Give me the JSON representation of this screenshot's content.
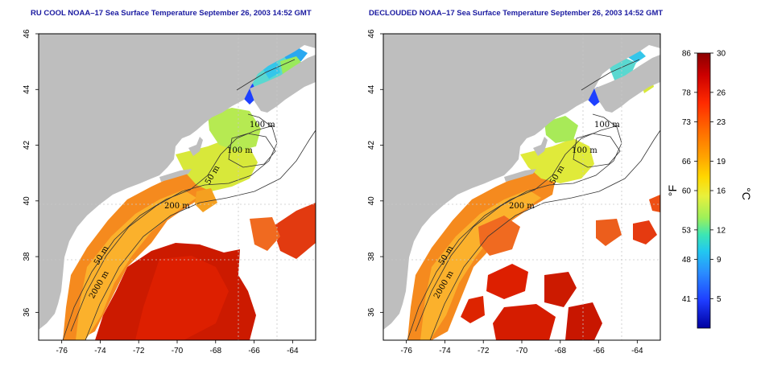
{
  "panels": [
    {
      "id": "raw",
      "title": "RU COOL NOAA–17 Sea Surface Temperature September 26, 2003 14:52 GMT"
    },
    {
      "id": "declouded",
      "title": "DECLOUDED NOAA–17 Sea Surface Temperature September 26, 2003 14:52 GMT"
    }
  ],
  "axes": {
    "x_ticks": [
      "-76",
      "-74",
      "-72",
      "-70",
      "-68",
      "-66",
      "-64"
    ],
    "y_ticks": [
      "36",
      "38",
      "40",
      "42",
      "44",
      "46"
    ],
    "lon_range": [
      -77.2,
      -62.8
    ],
    "lat_range": [
      35.0,
      46.0
    ]
  },
  "contour_labels": [
    "100 m",
    "100 m",
    "50 m",
    "200 m",
    "50 m",
    "2000 m"
  ],
  "colorbar": {
    "fahrenheit_ticks": [
      "86",
      "78",
      "73",
      "66",
      "60",
      "53",
      "48",
      "41"
    ],
    "celsius_ticks": [
      "30",
      "26",
      "23",
      "19",
      "16",
      "12",
      "9",
      "5"
    ],
    "left_unit": "°F",
    "right_unit": "°C",
    "colors": [
      "#8b0000",
      "#cc0000",
      "#ff2a00",
      "#ff6a00",
      "#ffa500",
      "#ffd700",
      "#e8f03c",
      "#9cf05a",
      "#3ce6b4",
      "#22c8f0",
      "#2a8cff",
      "#1e3cff",
      "#0000a0"
    ]
  },
  "land_color": "#bebebe"
}
